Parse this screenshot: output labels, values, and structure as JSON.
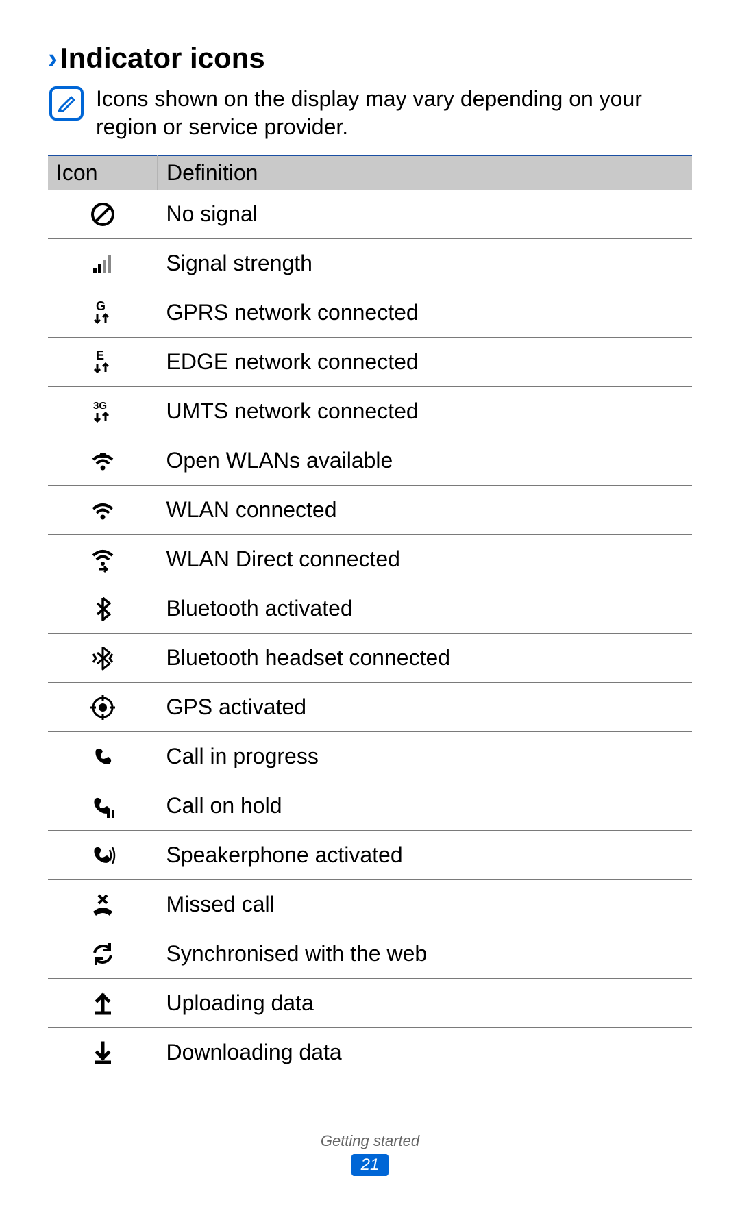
{
  "heading": {
    "chevron": "›",
    "title": "Indicator icons"
  },
  "note": {
    "text": "Icons shown on the display may vary depending on your region or service provider."
  },
  "table": {
    "columns": {
      "icon": "Icon",
      "definition": "Definition"
    },
    "rows": [
      {
        "icon": "no-signal",
        "definition": "No signal"
      },
      {
        "icon": "signal",
        "definition": "Signal strength"
      },
      {
        "icon": "gprs",
        "definition": "GPRS network connected"
      },
      {
        "icon": "edge",
        "definition": "EDGE network connected"
      },
      {
        "icon": "umts",
        "definition": "UMTS network connected"
      },
      {
        "icon": "wlan-open",
        "definition": "Open WLANs available"
      },
      {
        "icon": "wlan",
        "definition": "WLAN connected"
      },
      {
        "icon": "wlan-direct",
        "definition": "WLAN Direct connected"
      },
      {
        "icon": "bluetooth",
        "definition": "Bluetooth activated"
      },
      {
        "icon": "bt-headset",
        "definition": "Bluetooth headset connected"
      },
      {
        "icon": "gps",
        "definition": "GPS activated"
      },
      {
        "icon": "call",
        "definition": "Call in progress"
      },
      {
        "icon": "call-hold",
        "definition": "Call on hold"
      },
      {
        "icon": "speakerphone",
        "definition": "Speakerphone activated"
      },
      {
        "icon": "missed-call",
        "definition": "Missed call"
      },
      {
        "icon": "sync",
        "definition": "Synchronised with the web"
      },
      {
        "icon": "upload",
        "definition": "Uploading data"
      },
      {
        "icon": "download",
        "definition": "Downloading data"
      }
    ]
  },
  "footer": {
    "section": "Getting started",
    "page": "21"
  },
  "colors": {
    "accent": "#0066d6",
    "header_bg": "#c9c9c9",
    "rule": "#7a7a7a",
    "top_rule": "#1a4fa3"
  }
}
